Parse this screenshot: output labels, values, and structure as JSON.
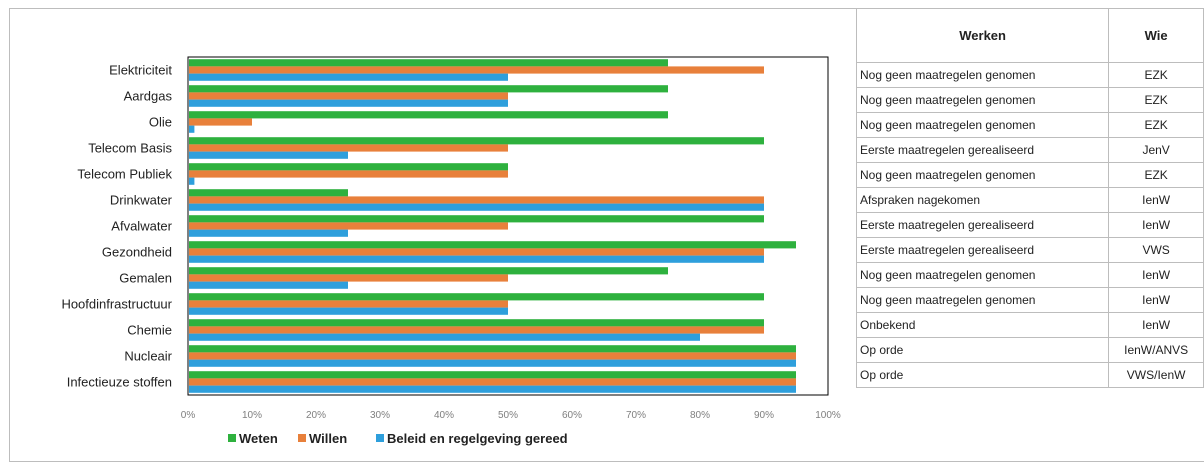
{
  "chart_data": {
    "type": "bar",
    "orientation": "horizontal",
    "categories": [
      "Elektriciteit",
      "Aardgas",
      "Olie",
      "Telecom Basis",
      "Telecom Publiek",
      "Drinkwater",
      "Afvalwater",
      "Gezondheid",
      "Gemalen",
      "Hoofdinfrastructuur",
      "Chemie",
      "Nucleair",
      "Infectieuze stoffen"
    ],
    "series": [
      {
        "name": "Weten",
        "color": "#2eb13e",
        "values": [
          75,
          75,
          75,
          90,
          50,
          25,
          90,
          95,
          75,
          90,
          90,
          95,
          95
        ]
      },
      {
        "name": "Willen",
        "color": "#e8803b",
        "values": [
          90,
          50,
          10,
          50,
          50,
          90,
          50,
          90,
          50,
          50,
          90,
          95,
          95
        ]
      },
      {
        "name": "Beleid en regelgeving gereed",
        "color": "#2e9fdc",
        "values": [
          50,
          50,
          1,
          25,
          1,
          90,
          25,
          90,
          25,
          50,
          80,
          95,
          95
        ]
      }
    ],
    "xlim": [
      0,
      100
    ],
    "xticks": [
      "0%",
      "10%",
      "20%",
      "30%",
      "40%",
      "50%",
      "60%",
      "70%",
      "80%",
      "90%",
      "100%"
    ],
    "grid": false,
    "legend_position": "bottom"
  },
  "table": {
    "headers": {
      "werken": "Werken",
      "wie": "Wie"
    },
    "rows": [
      {
        "werken": "Nog geen maatregelen genomen",
        "wie": "EZK"
      },
      {
        "werken": "Nog geen maatregelen genomen",
        "wie": "EZK"
      },
      {
        "werken": "Nog geen maatregelen genomen",
        "wie": "EZK"
      },
      {
        "werken": "Eerste maatregelen gerealiseerd",
        "wie": "JenV"
      },
      {
        "werken": "Nog geen maatregelen genomen",
        "wie": "EZK"
      },
      {
        "werken": "Afspraken nagekomen",
        "wie": "IenW"
      },
      {
        "werken": "Eerste maatregelen gerealiseerd",
        "wie": "IenW"
      },
      {
        "werken": "Eerste maatregelen gerealiseerd",
        "wie": "VWS"
      },
      {
        "werken": "Nog geen maatregelen genomen",
        "wie": "IenW"
      },
      {
        "werken": "Nog geen maatregelen genomen",
        "wie": "IenW"
      },
      {
        "werken": "Onbekend",
        "wie": "IenW"
      },
      {
        "werken": "Op orde",
        "wie": "IenW/ANVS"
      },
      {
        "werken": "Op orde",
        "wie": "VWS/IenW"
      }
    ]
  }
}
